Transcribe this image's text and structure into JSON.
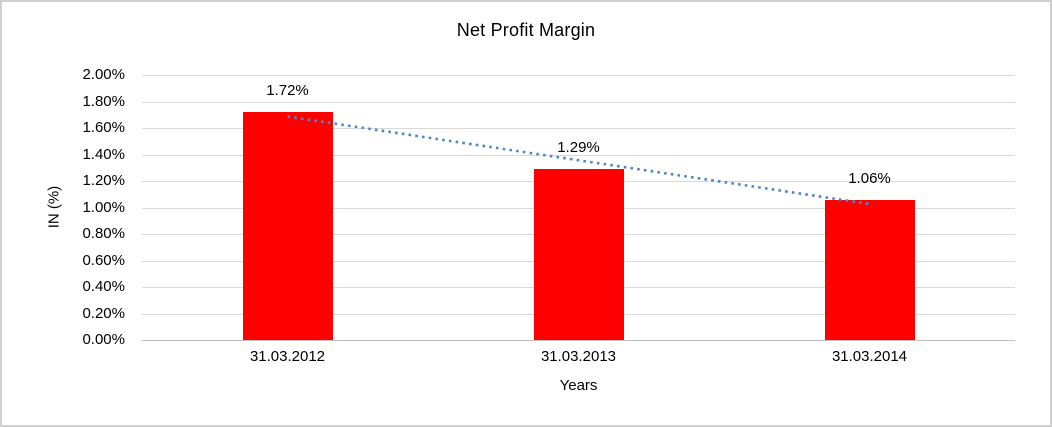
{
  "chart_data": {
    "type": "bar",
    "title": "Net Profit Margin",
    "ylabel": "IN (%)",
    "xlabel": "Years",
    "categories": [
      "31.03.2012",
      "31.03.2013",
      "31.03.2014"
    ],
    "values": [
      1.72,
      1.29,
      1.06
    ],
    "data_labels": [
      "1.72%",
      "1.29%",
      "1.06%"
    ],
    "ylim": [
      0,
      2
    ],
    "ytick_step": 0.2,
    "ytick_labels_top_to_bottom": [
      "2.00%",
      "1.80%",
      "1.60%",
      "1.40%",
      "1.20%",
      "1.00%",
      "0.80%",
      "0.60%",
      "0.40%",
      "0.20%",
      "0.00%"
    ],
    "grid": true,
    "legend": "none",
    "trendline": {
      "type": "linear",
      "style": "dotted"
    },
    "colors": {
      "bar": "#ff0000",
      "trendline": "#4e87c8",
      "gridline": "#d9d9d9",
      "axis_line": "#bfbfbf",
      "text": "#000000",
      "frame_border": "#d0d0d0",
      "background": "#ffffff"
    }
  }
}
